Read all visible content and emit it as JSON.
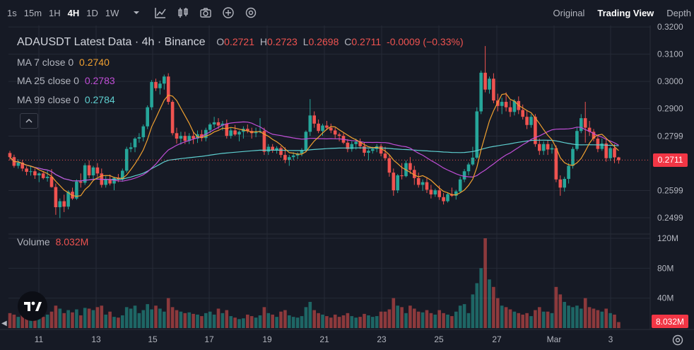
{
  "toolbar": {
    "timeframes": [
      "1s",
      "15m",
      "1H",
      "4H",
      "1D",
      "1W"
    ],
    "active_timeframe": "4H",
    "icons": [
      "chevron-down-icon",
      "indicator-icon",
      "candle-type-icon",
      "camera-icon",
      "plus-circle-icon",
      "gear-icon"
    ],
    "views": [
      "Original",
      "Trading View",
      "Depth"
    ],
    "active_view": "Trading View"
  },
  "legend": {
    "title": "ADAUSDT Latest Data · 4h · Binance",
    "o_label": "O",
    "o_value": "0.2721",
    "h_label": "H",
    "h_value": "0.2723",
    "l_label": "L",
    "l_value": "0.2698",
    "c_label": "C",
    "c_value": "0.2711",
    "change": "-0.0009 (−0.33%)",
    "ma7_label": "MA 7 close 0",
    "ma7_value": "0.2740",
    "ma25_label": "MA 25 close 0",
    "ma25_value": "0.2783",
    "ma99_label": "MA 99 close 0",
    "ma99_value": "0.2784",
    "volume_label": "Volume",
    "volume_value": "8.032M"
  },
  "price_tag": "0.2711",
  "volume_tag": "8.032M",
  "colors": {
    "up": "#26a69a",
    "down": "#ef5350",
    "ma7": "#f0a030",
    "ma25": "#c04ed6",
    "ma99": "#5ecfd0",
    "bg": "#161a25"
  },
  "chart_data": {
    "type": "candlestick",
    "x_ticks": [
      "11",
      "13",
      "15",
      "17",
      "19",
      "21",
      "23",
      "25",
      "27",
      "Mar",
      "3"
    ],
    "price_axis": [
      "0.3200",
      "0.3100",
      "0.3000",
      "0.2900",
      "0.2799",
      "0.2599",
      "0.2499"
    ],
    "volume_axis": [
      "120M",
      "80M",
      "40M"
    ],
    "ylim": [
      0.2455,
      0.3203
    ],
    "vol_ylim": [
      0,
      120
    ],
    "candles": [
      [
        0.2737,
        0.2745,
        0.271,
        0.2722,
        20
      ],
      [
        0.2722,
        0.2731,
        0.2683,
        0.269,
        18
      ],
      [
        0.269,
        0.2714,
        0.268,
        0.2702,
        15
      ],
      [
        0.2702,
        0.2712,
        0.267,
        0.268,
        24
      ],
      [
        0.268,
        0.2688,
        0.2655,
        0.2668,
        17
      ],
      [
        0.2668,
        0.269,
        0.2654,
        0.267,
        14
      ],
      [
        0.267,
        0.268,
        0.2642,
        0.2655,
        19
      ],
      [
        0.2655,
        0.2666,
        0.263,
        0.2662,
        16
      ],
      [
        0.2662,
        0.267,
        0.264,
        0.2645,
        15
      ],
      [
        0.2645,
        0.2672,
        0.2632,
        0.265,
        18
      ],
      [
        0.265,
        0.2678,
        0.261,
        0.2612,
        22
      ],
      [
        0.2612,
        0.2625,
        0.251,
        0.2538,
        30
      ],
      [
        0.2538,
        0.257,
        0.2498,
        0.256,
        26
      ],
      [
        0.256,
        0.2584,
        0.252,
        0.254,
        20
      ],
      [
        0.254,
        0.26,
        0.253,
        0.2595,
        24
      ],
      [
        0.2595,
        0.261,
        0.2565,
        0.257,
        21
      ],
      [
        0.257,
        0.264,
        0.2565,
        0.2632,
        25
      ],
      [
        0.2632,
        0.2662,
        0.261,
        0.2628,
        17
      ],
      [
        0.2628,
        0.27,
        0.262,
        0.2692,
        27
      ],
      [
        0.2692,
        0.271,
        0.2645,
        0.2655,
        26
      ],
      [
        0.2655,
        0.269,
        0.264,
        0.2684,
        24
      ],
      [
        0.2684,
        0.27,
        0.265,
        0.2662,
        28
      ],
      [
        0.2662,
        0.268,
        0.261,
        0.262,
        30
      ],
      [
        0.262,
        0.2652,
        0.261,
        0.264,
        18
      ],
      [
        0.264,
        0.2658,
        0.2618,
        0.2625,
        22
      ],
      [
        0.2625,
        0.265,
        0.26,
        0.2645,
        15
      ],
      [
        0.2645,
        0.266,
        0.263,
        0.264,
        14
      ],
      [
        0.264,
        0.268,
        0.2632,
        0.2672,
        17
      ],
      [
        0.2672,
        0.276,
        0.2665,
        0.2752,
        28
      ],
      [
        0.2752,
        0.2775,
        0.274,
        0.2758,
        26
      ],
      [
        0.2758,
        0.2795,
        0.274,
        0.279,
        30
      ],
      [
        0.279,
        0.281,
        0.2775,
        0.2795,
        20
      ],
      [
        0.2795,
        0.2842,
        0.278,
        0.2835,
        24
      ],
      [
        0.2835,
        0.2912,
        0.2825,
        0.2905,
        32
      ],
      [
        0.2905,
        0.3005,
        0.2895,
        0.2998,
        25
      ],
      [
        0.2998,
        0.301,
        0.2965,
        0.2975,
        30
      ],
      [
        0.2975,
        0.3003,
        0.2952,
        0.2992,
        26
      ],
      [
        0.2992,
        0.3025,
        0.297,
        0.3018,
        22
      ],
      [
        0.3018,
        0.303,
        0.2915,
        0.2925,
        40
      ],
      [
        0.2925,
        0.2932,
        0.2802,
        0.281,
        28
      ],
      [
        0.281,
        0.283,
        0.2772,
        0.279,
        24
      ],
      [
        0.279,
        0.2815,
        0.2768,
        0.28,
        22
      ],
      [
        0.28,
        0.2815,
        0.277,
        0.2782,
        20
      ],
      [
        0.2782,
        0.281,
        0.277,
        0.28,
        21
      ],
      [
        0.28,
        0.2815,
        0.277,
        0.279,
        19
      ],
      [
        0.279,
        0.282,
        0.2774,
        0.2806,
        18
      ],
      [
        0.2806,
        0.2822,
        0.278,
        0.2792,
        16
      ],
      [
        0.2792,
        0.283,
        0.278,
        0.2822,
        20
      ],
      [
        0.2822,
        0.2848,
        0.281,
        0.2842,
        22
      ],
      [
        0.2842,
        0.287,
        0.283,
        0.285,
        18
      ],
      [
        0.285,
        0.2865,
        0.2825,
        0.2838,
        26
      ],
      [
        0.2838,
        0.2855,
        0.282,
        0.2845,
        20
      ],
      [
        0.2845,
        0.286,
        0.279,
        0.28,
        24
      ],
      [
        0.28,
        0.283,
        0.279,
        0.282,
        16
      ],
      [
        0.282,
        0.284,
        0.28,
        0.2805,
        14
      ],
      [
        0.2805,
        0.282,
        0.278,
        0.2815,
        12
      ],
      [
        0.2815,
        0.2835,
        0.279,
        0.2826,
        13
      ],
      [
        0.2826,
        0.2842,
        0.281,
        0.2818,
        18
      ],
      [
        0.2818,
        0.283,
        0.279,
        0.281,
        16
      ],
      [
        0.281,
        0.283,
        0.2795,
        0.2815,
        14
      ],
      [
        0.2815,
        0.2865,
        0.281,
        0.2818,
        17
      ],
      [
        0.2818,
        0.283,
        0.273,
        0.2742,
        28
      ],
      [
        0.2742,
        0.277,
        0.273,
        0.276,
        20
      ],
      [
        0.276,
        0.277,
        0.2738,
        0.2748,
        18
      ],
      [
        0.2748,
        0.2762,
        0.2735,
        0.2755,
        15
      ],
      [
        0.2755,
        0.2762,
        0.272,
        0.273,
        22
      ],
      [
        0.273,
        0.2758,
        0.27,
        0.2712,
        24
      ],
      [
        0.2712,
        0.273,
        0.269,
        0.2722,
        17
      ],
      [
        0.2722,
        0.274,
        0.271,
        0.2728,
        15
      ],
      [
        0.2728,
        0.274,
        0.2715,
        0.2735,
        14
      ],
      [
        0.2735,
        0.2755,
        0.2725,
        0.2748,
        16
      ],
      [
        0.2748,
        0.282,
        0.274,
        0.2815,
        28
      ],
      [
        0.2815,
        0.2935,
        0.28,
        0.2875,
        35
      ],
      [
        0.2875,
        0.289,
        0.283,
        0.2845,
        24
      ],
      [
        0.2845,
        0.286,
        0.281,
        0.2818,
        20
      ],
      [
        0.2818,
        0.2845,
        0.28,
        0.2838,
        18
      ],
      [
        0.2838,
        0.2855,
        0.2822,
        0.283,
        16
      ],
      [
        0.283,
        0.2845,
        0.281,
        0.282,
        14
      ],
      [
        0.282,
        0.283,
        0.279,
        0.2805,
        18
      ],
      [
        0.2805,
        0.2812,
        0.278,
        0.28,
        15
      ],
      [
        0.28,
        0.281,
        0.277,
        0.2775,
        17
      ],
      [
        0.2775,
        0.2788,
        0.274,
        0.2752,
        20
      ],
      [
        0.2752,
        0.278,
        0.2742,
        0.277,
        16
      ],
      [
        0.277,
        0.279,
        0.275,
        0.2778,
        14
      ],
      [
        0.2778,
        0.279,
        0.2752,
        0.2762,
        15
      ],
      [
        0.2762,
        0.2775,
        0.2725,
        0.2738,
        19
      ],
      [
        0.2738,
        0.2752,
        0.271,
        0.2745,
        17
      ],
      [
        0.2745,
        0.276,
        0.2735,
        0.2752,
        15
      ],
      [
        0.2752,
        0.277,
        0.274,
        0.2762,
        16
      ],
      [
        0.2762,
        0.277,
        0.2725,
        0.2735,
        22
      ],
      [
        0.2735,
        0.276,
        0.271,
        0.2718,
        22
      ],
      [
        0.2718,
        0.273,
        0.265,
        0.2665,
        25
      ],
      [
        0.2665,
        0.268,
        0.258,
        0.26,
        40
      ],
      [
        0.26,
        0.266,
        0.259,
        0.2655,
        30
      ],
      [
        0.2655,
        0.27,
        0.264,
        0.2652,
        28
      ],
      [
        0.2652,
        0.271,
        0.2648,
        0.27,
        20
      ],
      [
        0.27,
        0.2722,
        0.266,
        0.2675,
        30
      ],
      [
        0.2675,
        0.269,
        0.262,
        0.2645,
        26
      ],
      [
        0.2645,
        0.2665,
        0.261,
        0.262,
        22
      ],
      [
        0.262,
        0.264,
        0.2598,
        0.263,
        21
      ],
      [
        0.263,
        0.2648,
        0.259,
        0.2602,
        24
      ],
      [
        0.2602,
        0.262,
        0.257,
        0.2585,
        20
      ],
      [
        0.2585,
        0.2606,
        0.2576,
        0.26,
        18
      ],
      [
        0.26,
        0.2618,
        0.2565,
        0.2575,
        24
      ],
      [
        0.2575,
        0.259,
        0.2548,
        0.256,
        20
      ],
      [
        0.256,
        0.2592,
        0.2555,
        0.2586,
        18
      ],
      [
        0.2586,
        0.261,
        0.2576,
        0.258,
        16
      ],
      [
        0.258,
        0.2602,
        0.2566,
        0.2596,
        22
      ],
      [
        0.2596,
        0.265,
        0.259,
        0.264,
        30
      ],
      [
        0.264,
        0.2678,
        0.263,
        0.267,
        32
      ],
      [
        0.267,
        0.2702,
        0.2655,
        0.2695,
        20
      ],
      [
        0.2695,
        0.276,
        0.269,
        0.272,
        45
      ],
      [
        0.272,
        0.2905,
        0.2715,
        0.289,
        60
      ],
      [
        0.289,
        0.304,
        0.288,
        0.3032,
        80
      ],
      [
        0.3032,
        0.313,
        0.296,
        0.297,
        120
      ],
      [
        0.297,
        0.3018,
        0.2955,
        0.301,
        65
      ],
      [
        0.301,
        0.303,
        0.292,
        0.293,
        55
      ],
      [
        0.293,
        0.2955,
        0.289,
        0.291,
        40
      ],
      [
        0.291,
        0.294,
        0.288,
        0.2925,
        30
      ],
      [
        0.2925,
        0.296,
        0.289,
        0.2905,
        28
      ],
      [
        0.2905,
        0.293,
        0.287,
        0.2888,
        25
      ],
      [
        0.2888,
        0.2935,
        0.2875,
        0.2928,
        22
      ],
      [
        0.2928,
        0.2945,
        0.288,
        0.2895,
        20
      ],
      [
        0.2895,
        0.2915,
        0.286,
        0.287,
        18
      ],
      [
        0.287,
        0.2895,
        0.2825,
        0.284,
        20
      ],
      [
        0.284,
        0.288,
        0.283,
        0.287,
        16
      ],
      [
        0.287,
        0.288,
        0.276,
        0.277,
        24
      ],
      [
        0.277,
        0.279,
        0.273,
        0.2745,
        28
      ],
      [
        0.2745,
        0.278,
        0.273,
        0.277,
        22
      ],
      [
        0.277,
        0.2785,
        0.273,
        0.275,
        22
      ],
      [
        0.275,
        0.277,
        0.2735,
        0.2755,
        20
      ],
      [
        0.2755,
        0.2765,
        0.263,
        0.264,
        55
      ],
      [
        0.264,
        0.2655,
        0.258,
        0.261,
        45
      ],
      [
        0.261,
        0.265,
        0.2595,
        0.2642,
        35
      ],
      [
        0.2642,
        0.27,
        0.2625,
        0.269,
        30
      ],
      [
        0.269,
        0.276,
        0.268,
        0.2752,
        28
      ],
      [
        0.2752,
        0.283,
        0.2745,
        0.2818,
        30
      ],
      [
        0.2818,
        0.288,
        0.281,
        0.2865,
        26
      ],
      [
        0.2865,
        0.2925,
        0.2775,
        0.283,
        40
      ],
      [
        0.283,
        0.2855,
        0.28,
        0.2815,
        28
      ],
      [
        0.2815,
        0.2825,
        0.278,
        0.279,
        26
      ],
      [
        0.279,
        0.28,
        0.274,
        0.2752,
        24
      ],
      [
        0.2752,
        0.279,
        0.2745,
        0.2772,
        22
      ],
      [
        0.2772,
        0.2785,
        0.2705,
        0.2718,
        26
      ],
      [
        0.2718,
        0.276,
        0.2708,
        0.2755,
        20
      ],
      [
        0.2755,
        0.277,
        0.27,
        0.2721,
        18
      ],
      [
        0.2721,
        0.2723,
        0.2698,
        0.2711,
        8.032
      ]
    ]
  }
}
